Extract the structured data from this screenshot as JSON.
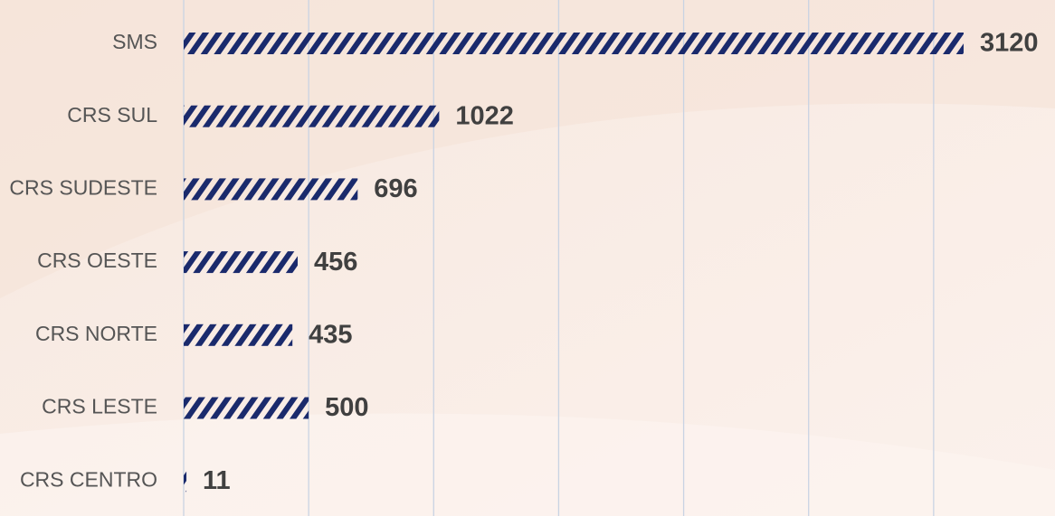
{
  "chart_data": {
    "type": "bar",
    "orientation": "horizontal",
    "categories": [
      "SMS",
      "CRS SUL",
      "CRS SUDESTE",
      "CRS OESTE",
      "CRS NORTE",
      "CRS LESTE",
      "CRS CENTRO"
    ],
    "values": [
      3120,
      1022,
      696,
      456,
      435,
      500,
      11
    ],
    "color": "#1a2a6c",
    "xlim": [
      0,
      3500
    ],
    "xticks": [
      0,
      500,
      1000,
      1500,
      2000,
      2500,
      3000
    ],
    "grid": true
  }
}
